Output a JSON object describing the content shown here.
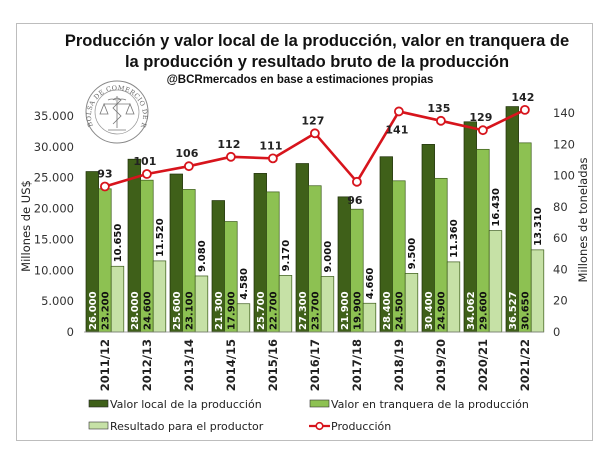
{
  "chart_data": {
    "type": "bar",
    "title": "Producción y valor local de la producción, valor en tranquera de la producción y resultado bruto de la producción",
    "title_lines": [
      "Producción y valor local de la producción, valor en tranquera de",
      "la producción y resultado bruto de la producción"
    ],
    "subtitle": "@BCRmercados en base a estimaciones propias",
    "logo_text": "BOLSA DE COMERCIO DE ROSARIO",
    "categories": [
      "2011/12",
      "2012/13",
      "2013/14",
      "2014/15",
      "2015/16",
      "2016/17",
      "2017/18",
      "2018/19",
      "2019/20",
      "2020/21",
      "2021/22"
    ],
    "series": [
      {
        "name": "Valor local de la producción",
        "type": "bar",
        "axis": "left",
        "color": "#3f6019",
        "values": [
          26000,
          28000,
          25600,
          21300,
          25700,
          27300,
          21900,
          28400,
          30400,
          34062,
          36527
        ],
        "labels": [
          "26.000",
          "28.000",
          "25.600",
          "21.300",
          "25.700",
          "27.300",
          "21.900",
          "28.400",
          "30.400",
          "34.062",
          "36.527"
        ]
      },
      {
        "name": "Valor en tranquera de la producción",
        "type": "bar",
        "axis": "left",
        "color": "#8dc152",
        "values": [
          23200,
          24600,
          23100,
          17900,
          22700,
          23700,
          19900,
          24500,
          24900,
          29600,
          30650
        ],
        "labels": [
          "23.200",
          "24.600",
          "23.100",
          "17.900",
          "22.700",
          "23.700",
          "19.900",
          "24.500",
          "24.900",
          "29.600",
          "30.650"
        ]
      },
      {
        "name": "Resultado para el productor",
        "type": "bar",
        "axis": "left",
        "color": "#c6e1a6",
        "values": [
          10650,
          11520,
          9080,
          4580,
          9170,
          9000,
          4660,
          9500,
          11360,
          16430,
          13310
        ],
        "labels": [
          "10.650",
          "11.520",
          "9.080",
          "4.580",
          "9.170",
          "9.000",
          "4.660",
          "9.500",
          "11.360",
          "16.430",
          "13.310"
        ]
      },
      {
        "name": "Producción",
        "type": "line",
        "axis": "right",
        "color": "#d7141c",
        "values": [
          93,
          101,
          106,
          112,
          111,
          127,
          96,
          141,
          135,
          129,
          142
        ],
        "labels": [
          "93",
          "101",
          "106",
          "112",
          "111",
          "127",
          "96",
          "141",
          "135",
          "129",
          "142"
        ]
      }
    ],
    "ylabel": "Millones de US$",
    "y2label": "Millones de toneladas",
    "ylim": [
      0,
      35000
    ],
    "y2lim": [
      0,
      140
    ],
    "yticks": [
      0,
      5000,
      10000,
      15000,
      20000,
      25000,
      30000,
      35000
    ],
    "ytick_labels": [
      "0",
      "5.000",
      "10.000",
      "15.000",
      "20.000",
      "25.000",
      "30.000",
      "35.000"
    ],
    "y2ticks": [
      0,
      20,
      40,
      60,
      80,
      100,
      120,
      140
    ],
    "y2tick_labels": [
      "0",
      "20",
      "40",
      "60",
      "80",
      "100",
      "120",
      "140"
    ],
    "grid": false,
    "legend_position": "bottom",
    "legend": [
      "Valor local de la producción",
      "Valor en tranquera de la producción",
      "Resultado para el productor",
      "Producción"
    ]
  }
}
